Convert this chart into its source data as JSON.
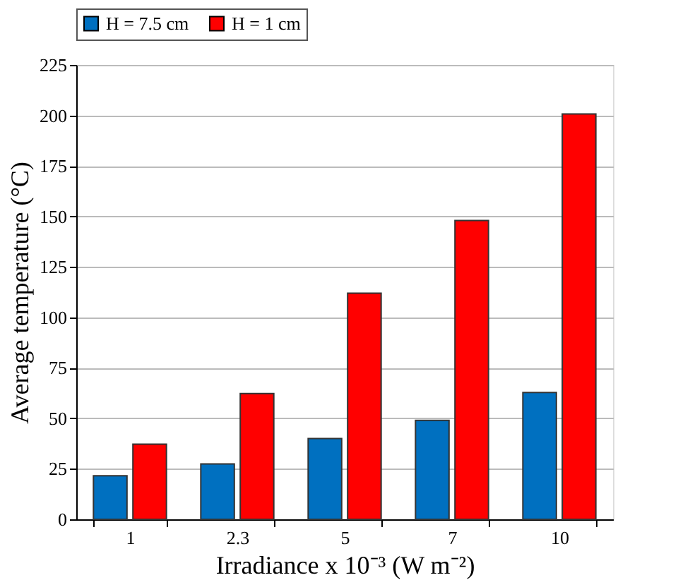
{
  "chart_data": {
    "type": "bar",
    "xlabel": "Irradiance x 10⁻³ (W m⁻²)",
    "ylabel": "Average temperature (°C)",
    "categories": [
      "1",
      "2.3",
      "5",
      "7",
      "10"
    ],
    "series": [
      {
        "name": "H = 7.5 cm",
        "color": "#0070c0",
        "values": [
          21.6,
          27.4,
          40,
          49,
          62.8
        ]
      },
      {
        "name": "H = 1 cm",
        "color": "#ff0000",
        "values": [
          37.2,
          62.3,
          112,
          148,
          200.7
        ]
      }
    ],
    "ylim": [
      0,
      225
    ],
    "yticks": [
      0,
      25,
      50,
      75,
      100,
      125,
      150,
      175,
      200,
      225
    ],
    "grid": "y",
    "legend": "top"
  }
}
